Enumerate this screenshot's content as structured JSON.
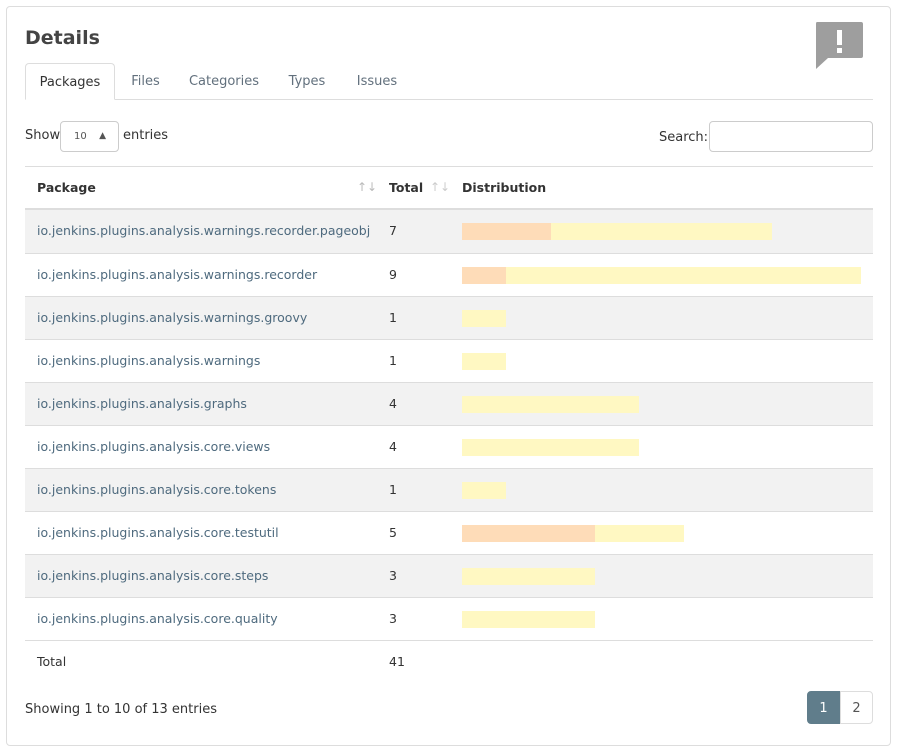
{
  "header": {
    "title": "Details"
  },
  "tabs": [
    "Packages",
    "Files",
    "Categories",
    "Types",
    "Issues"
  ],
  "controls": {
    "show_label": "Show",
    "page_size": 10,
    "entries_label": "entries",
    "search_label": "Search:"
  },
  "table": {
    "columns": [
      "Package",
      "Total",
      "Distribution"
    ],
    "distribution_colors": [
      "#fedcb8",
      "#fff8c2"
    ],
    "rows": [
      {
        "package": "io.jenkins.plugins.analysis.warnings.recorder.pageobj",
        "total": 7,
        "distribution": [
          2,
          5
        ]
      },
      {
        "package": "io.jenkins.plugins.analysis.warnings.recorder",
        "total": 9,
        "distribution": [
          1,
          8
        ]
      },
      {
        "package": "io.jenkins.plugins.analysis.warnings.groovy",
        "total": 1,
        "distribution": [
          0,
          1
        ]
      },
      {
        "package": "io.jenkins.plugins.analysis.warnings",
        "total": 1,
        "distribution": [
          0,
          1
        ]
      },
      {
        "package": "io.jenkins.plugins.analysis.graphs",
        "total": 4,
        "distribution": [
          0,
          4
        ]
      },
      {
        "package": "io.jenkins.plugins.analysis.core.views",
        "total": 4,
        "distribution": [
          0,
          4
        ]
      },
      {
        "package": "io.jenkins.plugins.analysis.core.tokens",
        "total": 1,
        "distribution": [
          0,
          1
        ]
      },
      {
        "package": "io.jenkins.plugins.analysis.core.testutil",
        "total": 5,
        "distribution": [
          3,
          2
        ]
      },
      {
        "package": "io.jenkins.plugins.analysis.core.steps",
        "total": 3,
        "distribution": [
          0,
          3
        ]
      },
      {
        "package": "io.jenkins.plugins.analysis.core.quality",
        "total": 3,
        "distribution": [
          0,
          3
        ]
      }
    ],
    "footer": {
      "label": "Total",
      "total": 41
    }
  },
  "info": "Showing 1 to 10 of 13 entries",
  "pagination": {
    "pages": [
      1,
      2
    ],
    "active": 1
  }
}
